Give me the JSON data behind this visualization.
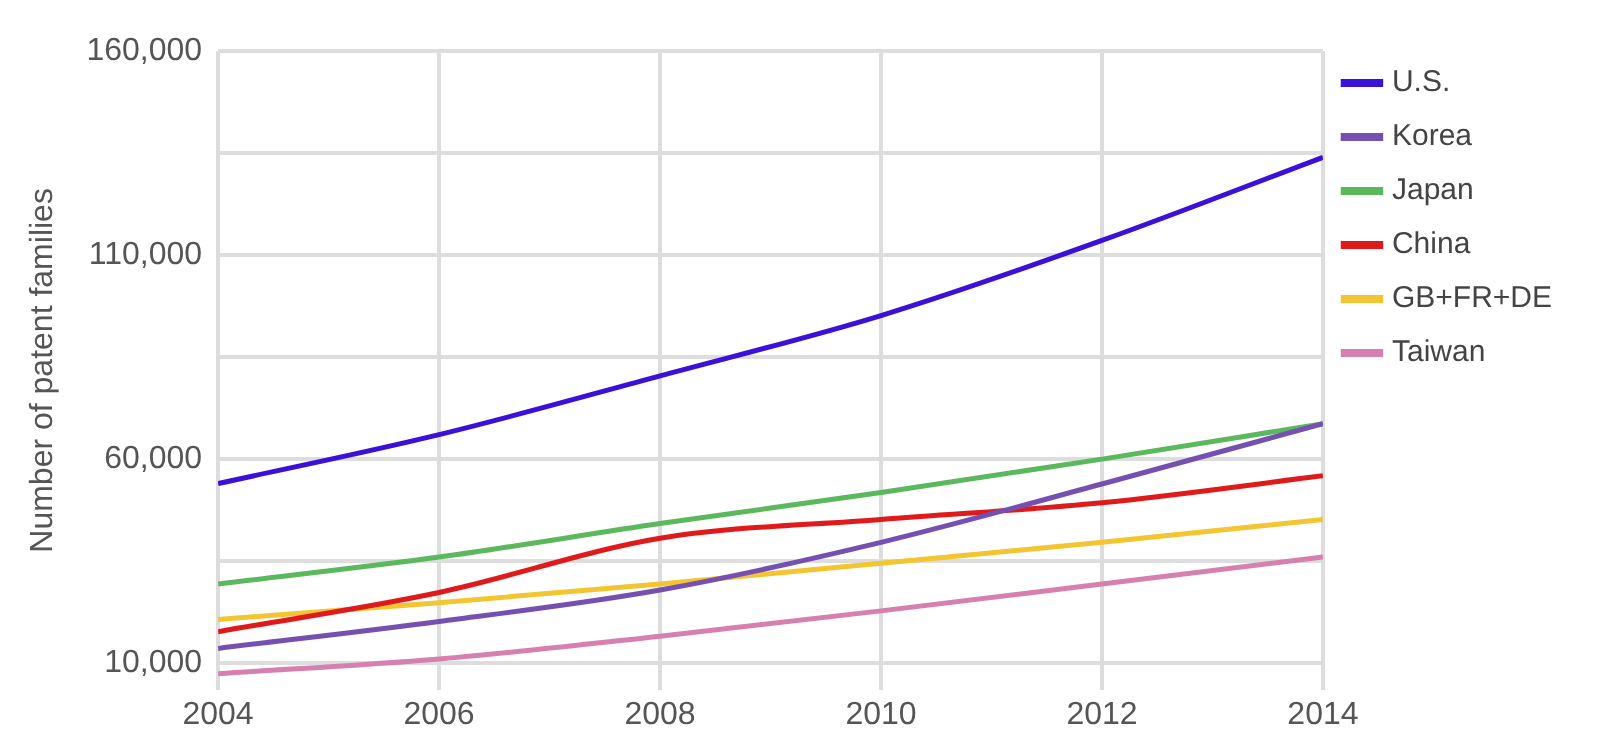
{
  "chart_data": {
    "type": "line",
    "ylabel": "Number of patent families",
    "x": [
      2004,
      2006,
      2008,
      2010,
      2012,
      2014
    ],
    "xlim": [
      2004,
      2014
    ],
    "xticks": [
      2004,
      2006,
      2008,
      2010,
      2012,
      2014
    ],
    "ylim": [
      3500,
      160000
    ],
    "yticks": [
      {
        "value": 10000,
        "label": "10,000"
      },
      {
        "value": 35000,
        "label": null
      },
      {
        "value": 60000,
        "label": "60,000"
      },
      {
        "value": 85000,
        "label": null
      },
      {
        "value": 110000,
        "label": "110,000"
      },
      {
        "value": 135000,
        "label": null
      },
      {
        "value": 160000,
        "label": "160,000"
      }
    ],
    "grid": true,
    "legend": "right",
    "marker": "none",
    "line_style": "solid",
    "series": [
      {
        "name": "U.S.",
        "color": "#3b10d8",
        "values": [
          54000,
          66000,
          80400,
          95200,
          113600,
          134000
        ]
      },
      {
        "name": "Korea",
        "color": "#7650b0",
        "values": [
          13600,
          20200,
          27900,
          39600,
          53900,
          68700
        ]
      },
      {
        "name": "Japan",
        "color": "#5cb85c",
        "values": [
          29400,
          36000,
          44200,
          51800,
          60000,
          68700
        ]
      },
      {
        "name": "China",
        "color": "#e01a1a",
        "values": [
          17700,
          27300,
          40600,
          45200,
          49300,
          55900
        ]
      },
      {
        "name": "GB+FR+DE",
        "color": "#f2c531",
        "values": [
          20700,
          24800,
          29400,
          34500,
          39600,
          45200
        ]
      },
      {
        "name": "Taiwan",
        "color": "#d77fae",
        "values": [
          7400,
          11000,
          16600,
          22800,
          29400,
          36000
        ]
      }
    ]
  }
}
